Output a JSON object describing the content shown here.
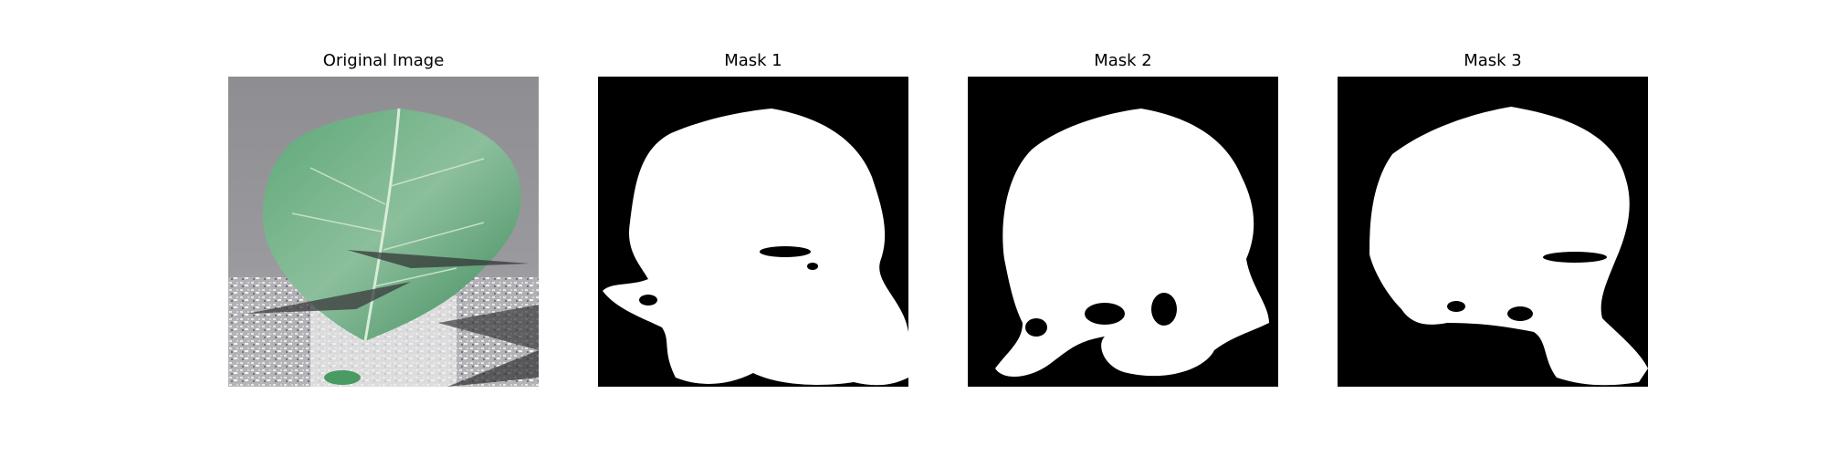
{
  "panels": [
    {
      "title": "Original Image",
      "kind": "photo",
      "subject": "leaf"
    },
    {
      "title": "Mask 1",
      "kind": "mask"
    },
    {
      "title": "Mask 2",
      "kind": "mask"
    },
    {
      "title": "Mask 3",
      "kind": "mask"
    }
  ],
  "colors": {
    "mask_foreground": "#ffffff",
    "mask_background": "#000000",
    "leaf_green": "#4f9a6a",
    "background_gray": "#8c8c90"
  }
}
